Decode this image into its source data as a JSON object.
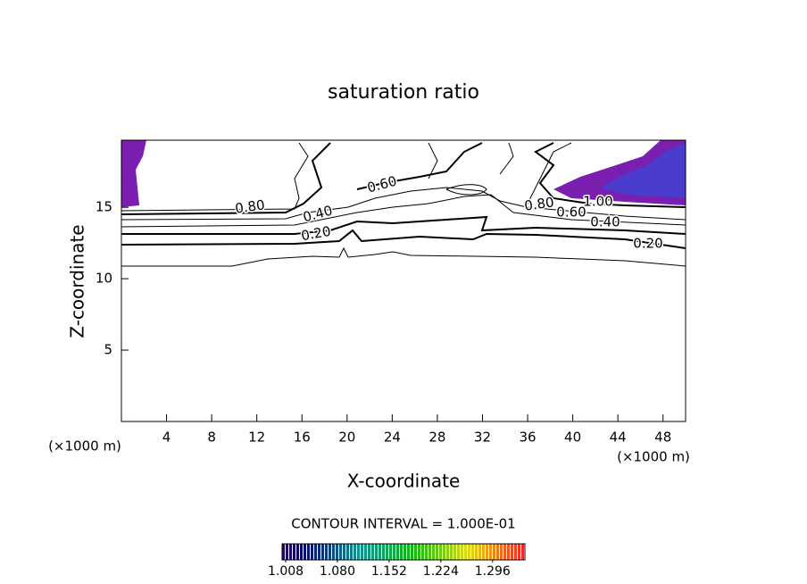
{
  "chart_data": {
    "type": "contour",
    "title": "saturation ratio",
    "x_label": "X-coordinate",
    "y_label": "Z-coordinate",
    "x_unit": "(×1000 m)",
    "y_unit": "(×1000 m)",
    "xlim": [
      0,
      50
    ],
    "ylim": [
      0,
      19.7
    ],
    "xticks": [
      4,
      8,
      12,
      16,
      20,
      24,
      28,
      32,
      36,
      40,
      44,
      48
    ],
    "yticks": [
      5,
      10,
      15
    ],
    "contour_labels": [
      {
        "value": 0.8,
        "label": "0.80"
      },
      {
        "value": 0.6,
        "label": "0.60"
      },
      {
        "value": 0.4,
        "label": "0.40"
      },
      {
        "value": 0.2,
        "label": "0.20"
      },
      {
        "value": 0.8,
        "label": "0.80"
      },
      {
        "value": 1,
        "label": "1.00"
      },
      {
        "value": 0.6,
        "label": "0.60"
      },
      {
        "value": 0.4,
        "label": "0.40"
      },
      {
        "value": 0.2,
        "label": "0.20"
      }
    ],
    "contour_interval": "CONTOUR INTERVAL = 1.000E-01",
    "colorbar": {
      "lim": [
        1.003,
        1.341
      ],
      "ticks": [
        1.008,
        {
          "value": 1.08,
          "label": "1.080"
        },
        1.152,
        1.224,
        1.296
      ]
    }
  }
}
